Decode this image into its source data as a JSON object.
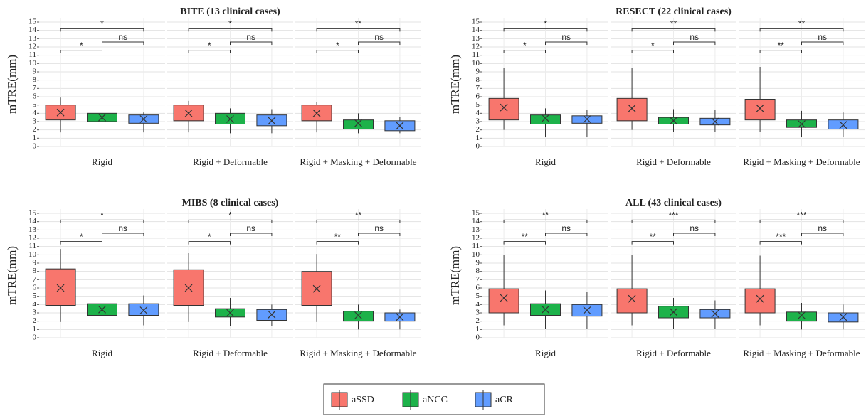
{
  "legend": {
    "series": [
      {
        "name": "aSSD",
        "color": "#f8766d"
      },
      {
        "name": "aNCC",
        "color": "#1db24a"
      },
      {
        "name": "aCR",
        "color": "#619cff"
      }
    ]
  },
  "chart_data": [
    {
      "type": "box",
      "title": "BITE (13 clinical cases)",
      "y_label": "mTRE(mm)",
      "ylim": [
        0,
        15
      ],
      "yticks": [
        0,
        1,
        2,
        3,
        4,
        5,
        6,
        7,
        8,
        9,
        10,
        11,
        12,
        13,
        14,
        15
      ],
      "grid": true,
      "facets": [
        {
          "label": "Rigid",
          "boxes": [
            {
              "min": 1.7,
              "q1": 3.2,
              "q3": 5.0,
              "max": 5.9,
              "mean": 4.1
            },
            {
              "min": 1.7,
              "q1": 3.0,
              "q3": 4.0,
              "max": 5.4,
              "mean": 3.5
            },
            {
              "min": 1.7,
              "q1": 2.8,
              "q3": 3.8,
              "max": 4.1,
              "mean": 3.3
            }
          ],
          "annotations": [
            "*",
            "*",
            "ns"
          ]
        },
        {
          "label": "Rigid + Deformable",
          "boxes": [
            {
              "min": 1.7,
              "q1": 3.1,
              "q3": 5.0,
              "max": 5.5,
              "mean": 4.0
            },
            {
              "min": 1.6,
              "q1": 2.7,
              "q3": 4.0,
              "max": 4.6,
              "mean": 3.3
            },
            {
              "min": 1.6,
              "q1": 2.5,
              "q3": 3.8,
              "max": 4.5,
              "mean": 3.1
            }
          ],
          "annotations": [
            "*",
            "*",
            "ns"
          ]
        },
        {
          "label": "Rigid + Masking + Deformable",
          "boxes": [
            {
              "min": 1.7,
              "q1": 3.1,
              "q3": 5.0,
              "max": 5.4,
              "mean": 4.0
            },
            {
              "min": 1.6,
              "q1": 2.1,
              "q3": 3.2,
              "max": 4.0,
              "mean": 2.8
            },
            {
              "min": 1.6,
              "q1": 1.9,
              "q3": 3.1,
              "max": 3.6,
              "mean": 2.5
            }
          ],
          "annotations": [
            "**",
            "*",
            "ns"
          ]
        }
      ]
    },
    {
      "type": "box",
      "title": "RESECT (22 clinical cases)",
      "y_label": "mTRE(mm)",
      "ylim": [
        0,
        15
      ],
      "yticks": [
        0,
        1,
        2,
        3,
        4,
        5,
        6,
        7,
        8,
        9,
        10,
        11,
        12,
        13,
        14,
        15
      ],
      "grid": true,
      "facets": [
        {
          "label": "Rigid",
          "boxes": [
            {
              "min": 2.0,
              "q1": 3.2,
              "q3": 5.8,
              "max": 9.5,
              "mean": 4.7
            },
            {
              "min": 1.2,
              "q1": 2.7,
              "q3": 3.8,
              "max": 4.6,
              "mean": 3.4
            },
            {
              "min": 1.2,
              "q1": 2.8,
              "q3": 3.7,
              "max": 4.4,
              "mean": 3.3
            }
          ],
          "annotations": [
            "*",
            "*",
            "ns"
          ]
        },
        {
          "label": "Rigid + Deformable",
          "boxes": [
            {
              "min": 2.0,
              "q1": 3.1,
              "q3": 5.8,
              "max": 9.5,
              "mean": 4.6
            },
            {
              "min": 1.8,
              "q1": 2.7,
              "q3": 3.5,
              "max": 4.5,
              "mean": 3.1
            },
            {
              "min": 1.8,
              "q1": 2.6,
              "q3": 3.4,
              "max": 4.4,
              "mean": 3.0
            }
          ],
          "annotations": [
            "**",
            "*",
            "ns"
          ]
        },
        {
          "label": "Rigid + Masking + Deformable",
          "boxes": [
            {
              "min": 1.8,
              "q1": 3.2,
              "q3": 5.7,
              "max": 9.6,
              "mean": 4.6
            },
            {
              "min": 1.2,
              "q1": 2.3,
              "q3": 3.2,
              "max": 4.3,
              "mean": 2.7
            },
            {
              "min": 1.2,
              "q1": 2.1,
              "q3": 3.2,
              "max": 4.1,
              "mean": 2.6
            }
          ],
          "annotations": [
            "**",
            "**",
            "ns"
          ]
        }
      ]
    },
    {
      "type": "box",
      "title": "MIBS (8 clinical cases)",
      "y_label": "mTRE(mm)",
      "ylim": [
        0,
        15
      ],
      "yticks": [
        0,
        1,
        2,
        3,
        4,
        5,
        6,
        7,
        8,
        9,
        10,
        11,
        12,
        13,
        14,
        15
      ],
      "grid": true,
      "facets": [
        {
          "label": "Rigid",
          "boxes": [
            {
              "min": 1.9,
              "q1": 3.9,
              "q3": 8.3,
              "max": 10.7,
              "mean": 6.0
            },
            {
              "min": 1.5,
              "q1": 2.7,
              "q3": 4.1,
              "max": 5.3,
              "mean": 3.4
            },
            {
              "min": 1.5,
              "q1": 2.7,
              "q3": 4.1,
              "max": 5.1,
              "mean": 3.3
            }
          ],
          "annotations": [
            "*",
            "*",
            "ns"
          ]
        },
        {
          "label": "Rigid + Deformable",
          "boxes": [
            {
              "min": 1.9,
              "q1": 3.9,
              "q3": 8.2,
              "max": 10.2,
              "mean": 6.0
            },
            {
              "min": 1.4,
              "q1": 2.5,
              "q3": 3.5,
              "max": 4.8,
              "mean": 3.0
            },
            {
              "min": 1.4,
              "q1": 2.1,
              "q3": 3.4,
              "max": 4.0,
              "mean": 2.8
            }
          ],
          "annotations": [
            "*",
            "*",
            "ns"
          ]
        },
        {
          "label": "Rigid + Masking + Deformable",
          "boxes": [
            {
              "min": 1.9,
              "q1": 3.9,
              "q3": 8.0,
              "max": 10.1,
              "mean": 5.9
            },
            {
              "min": 1.0,
              "q1": 2.0,
              "q3": 3.2,
              "max": 4.0,
              "mean": 2.7
            },
            {
              "min": 1.0,
              "q1": 2.0,
              "q3": 3.0,
              "max": 3.4,
              "mean": 2.5
            }
          ],
          "annotations": [
            "**",
            "**",
            "ns"
          ]
        }
      ]
    },
    {
      "type": "box",
      "title": "ALL (43 clinical cases)",
      "y_label": "mTRE(mm)",
      "ylim": [
        0,
        15
      ],
      "yticks": [
        0,
        1,
        2,
        3,
        4,
        5,
        6,
        7,
        8,
        9,
        10,
        11,
        12,
        13,
        14,
        15
      ],
      "grid": true,
      "facets": [
        {
          "label": "Rigid",
          "boxes": [
            {
              "min": 1.5,
              "q1": 3.0,
              "q3": 5.9,
              "max": 10.0,
              "mean": 4.8
            },
            {
              "min": 1.1,
              "q1": 2.7,
              "q3": 4.1,
              "max": 5.7,
              "mean": 3.4
            },
            {
              "min": 1.1,
              "q1": 2.6,
              "q3": 4.0,
              "max": 5.5,
              "mean": 3.3
            }
          ],
          "annotations": [
            "**",
            "**",
            "ns"
          ]
        },
        {
          "label": "Rigid + Deformable",
          "boxes": [
            {
              "min": 1.5,
              "q1": 3.0,
              "q3": 5.9,
              "max": 10.0,
              "mean": 4.7
            },
            {
              "min": 1.1,
              "q1": 2.4,
              "q3": 3.8,
              "max": 4.8,
              "mean": 3.1
            },
            {
              "min": 1.1,
              "q1": 2.4,
              "q3": 3.4,
              "max": 4.5,
              "mean": 2.9
            }
          ],
          "annotations": [
            "***",
            "**",
            "ns"
          ]
        },
        {
          "label": "Rigid + Masking + Deformable",
          "boxes": [
            {
              "min": 1.5,
              "q1": 3.0,
              "q3": 5.9,
              "max": 9.9,
              "mean": 4.7
            },
            {
              "min": 1.0,
              "q1": 2.0,
              "q3": 3.1,
              "max": 4.2,
              "mean": 2.7
            },
            {
              "min": 1.0,
              "q1": 1.9,
              "q3": 3.0,
              "max": 4.0,
              "mean": 2.5
            }
          ],
          "annotations": [
            "***",
            "***",
            "ns"
          ]
        }
      ]
    }
  ]
}
